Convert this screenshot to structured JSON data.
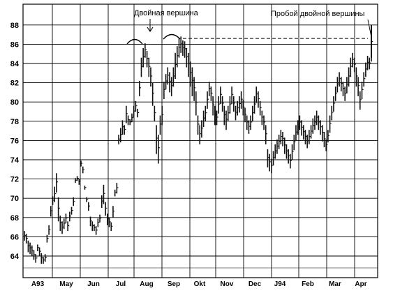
{
  "chart_data": {
    "type": "bar",
    "style": "OHLC price bars",
    "title": "",
    "xlabel": "",
    "ylabel": "",
    "ylim": [
      62.5,
      89.5
    ],
    "yticks": [
      64,
      66,
      68,
      70,
      72,
      74,
      76,
      78,
      80,
      82,
      84,
      86,
      88
    ],
    "grid": "on",
    "x_tick_labels": [
      "A93",
      "May",
      "Jun",
      "Jul",
      "Aug",
      "Sep",
      "Okt",
      "Nov",
      "Dec",
      "J94",
      "Feb",
      "Mar",
      "Apr"
    ],
    "annotations": [
      {
        "text": "Двойная вершина"
      },
      {
        "text": "Пробой двойной вершины"
      }
    ],
    "resistance_level": 86.6,
    "breakout_high": 88.0,
    "bars": [
      [
        66.6,
        65.6
      ],
      [
        66.3,
        65.3
      ],
      [
        65.6,
        64.4
      ],
      [
        65.4,
        64.2
      ],
      [
        65.1,
        64.0
      ],
      [
        64.6,
        63.6
      ],
      [
        64.2,
        63.3
      ],
      [
        65.2,
        64.5
      ],
      [
        64.9,
        64.0
      ],
      [
        64.3,
        63.2
      ],
      [
        63.9,
        63.2
      ],
      [
        64.2,
        63.4
      ],
      [
        66.2,
        65.4
      ],
      [
        67.2,
        66.2
      ],
      [
        69.2,
        68.1
      ],
      [
        70.2,
        69.3
      ],
      [
        71.2,
        69.6
      ],
      [
        72.6,
        70.6
      ],
      [
        70.1,
        67.6
      ],
      [
        68.2,
        66.6
      ],
      [
        67.6,
        66.3
      ],
      [
        67.9,
        66.8
      ],
      [
        68.4,
        67.4
      ],
      [
        67.6,
        66.6
      ],
      [
        68.6,
        67.6
      ],
      [
        69.1,
        68.3
      ],
      [
        70.1,
        69.2
      ],
      [
        72.1,
        71.6
      ],
      [
        72.3,
        71.8
      ],
      [
        72.0,
        71.4
      ],
      [
        73.9,
        73.3
      ],
      [
        73.3,
        72.6
      ],
      [
        71.3,
        70.9
      ],
      [
        70.1,
        69.6
      ],
      [
        69.6,
        68.7
      ],
      [
        68.1,
        67.1
      ],
      [
        67.6,
        66.6
      ],
      [
        67.3,
        66.6
      ],
      [
        67.1,
        66.2
      ],
      [
        67.9,
        67.0
      ],
      [
        68.3,
        67.5
      ],
      [
        70.3,
        69.0
      ],
      [
        71.4,
        69.4
      ],
      [
        69.6,
        68.2
      ],
      [
        68.4,
        67.2
      ],
      [
        68.0,
        67.0
      ],
      [
        67.5,
        66.6
      ],
      [
        69.2,
        68.0
      ],
      [
        70.9,
        70.2
      ],
      [
        71.6,
        70.5
      ],
      [
        76.6,
        75.6
      ],
      [
        77.3,
        75.8
      ],
      [
        78.1,
        76.6
      ],
      [
        77.6,
        76.6
      ],
      [
        79.6,
        77.8
      ],
      [
        78.6,
        77.6
      ],
      [
        78.2,
        77.6
      ],
      [
        78.8,
        77.9
      ],
      [
        79.6,
        78.4
      ],
      [
        80.1,
        79.0
      ],
      [
        79.3,
        78.4
      ],
      [
        82.2,
        80.6
      ],
      [
        84.6,
        82.6
      ],
      [
        85.6,
        83.6
      ],
      [
        86.1,
        84.6
      ],
      [
        85.3,
        83.6
      ],
      [
        84.6,
        82.6
      ],
      [
        83.6,
        81.6
      ],
      [
        82.0,
        79.6
      ],
      [
        79.6,
        78.0
      ],
      [
        77.6,
        74.6
      ],
      [
        76.6,
        73.6
      ],
      [
        78.6,
        76.6
      ],
      [
        79.6,
        77.6
      ],
      [
        82.1,
        80.3
      ],
      [
        82.9,
        81.3
      ],
      [
        83.6,
        81.8
      ],
      [
        83.1,
        81.0
      ],
      [
        82.6,
        80.6
      ],
      [
        83.6,
        81.6
      ],
      [
        85.1,
        82.4
      ],
      [
        85.8,
        83.6
      ],
      [
        86.6,
        84.6
      ],
      [
        86.8,
        85.1
      ],
      [
        86.4,
        84.8
      ],
      [
        86.3,
        84.6
      ],
      [
        85.6,
        83.6
      ],
      [
        85.1,
        82.6
      ],
      [
        84.2,
        81.6
      ],
      [
        83.6,
        80.6
      ],
      [
        82.6,
        80.1
      ],
      [
        81.1,
        78.6
      ],
      [
        78.6,
        76.6
      ],
      [
        77.6,
        75.6
      ],
      [
        78.1,
        76.3
      ],
      [
        79.1,
        77.4
      ],
      [
        79.6,
        78.0
      ],
      [
        81.1,
        79.3
      ],
      [
        82.1,
        80.6
      ],
      [
        81.6,
        80.1
      ],
      [
        80.6,
        78.6
      ],
      [
        79.6,
        77.6
      ],
      [
        79.1,
        77.6
      ],
      [
        80.6,
        78.8
      ],
      [
        81.6,
        79.8
      ],
      [
        80.6,
        79.0
      ],
      [
        79.6,
        77.6
      ],
      [
        79.1,
        77.1
      ],
      [
        79.6,
        78.0
      ],
      [
        80.6,
        78.8
      ],
      [
        81.6,
        79.8
      ],
      [
        80.6,
        79.0
      ],
      [
        79.6,
        78.1
      ],
      [
        80.1,
        78.6
      ],
      [
        80.6,
        78.9
      ],
      [
        81.1,
        79.3
      ],
      [
        80.2,
        78.6
      ],
      [
        79.4,
        77.9
      ],
      [
        78.6,
        77.1
      ],
      [
        78.1,
        76.7
      ],
      [
        78.6,
        77.1
      ],
      [
        79.6,
        78.0
      ],
      [
        80.6,
        78.8
      ],
      [
        81.6,
        79.9
      ],
      [
        81.1,
        79.4
      ],
      [
        80.1,
        78.6
      ],
      [
        79.1,
        77.6
      ],
      [
        78.6,
        77.1
      ],
      [
        77.6,
        75.6
      ],
      [
        75.1,
        73.2
      ],
      [
        74.6,
        72.8
      ],
      [
        74.1,
        72.6
      ],
      [
        74.9,
        73.4
      ],
      [
        75.6,
        74.1
      ],
      [
        76.1,
        74.6
      ],
      [
        76.6,
        75.1
      ],
      [
        77.1,
        75.6
      ],
      [
        76.9,
        75.4
      ],
      [
        76.3,
        74.6
      ],
      [
        75.6,
        74.1
      ],
      [
        75.1,
        73.6
      ],
      [
        74.6,
        73.1
      ],
      [
        75.6,
        74.0
      ],
      [
        76.6,
        75.0
      ],
      [
        77.6,
        76.0
      ],
      [
        78.1,
        76.6
      ],
      [
        78.6,
        77.1
      ],
      [
        78.1,
        76.5
      ],
      [
        77.6,
        76.1
      ],
      [
        77.1,
        75.6
      ],
      [
        76.6,
        75.2
      ],
      [
        77.1,
        75.6
      ],
      [
        77.6,
        76.2
      ],
      [
        78.3,
        76.7
      ],
      [
        78.6,
        77.1
      ],
      [
        79.1,
        77.6
      ],
      [
        78.6,
        77.1
      ],
      [
        78.1,
        76.6
      ],
      [
        77.6,
        75.9
      ],
      [
        76.9,
        75.3
      ],
      [
        76.1,
        74.9
      ],
      [
        77.1,
        75.8
      ],
      [
        78.6,
        76.8
      ],
      [
        79.6,
        78.1
      ],
      [
        80.6,
        79.0
      ],
      [
        81.6,
        80.1
      ],
      [
        82.6,
        81.0
      ],
      [
        83.1,
        81.6
      ],
      [
        82.6,
        81.1
      ],
      [
        82.1,
        80.6
      ],
      [
        81.6,
        80.1
      ],
      [
        82.6,
        80.9
      ],
      [
        83.6,
        81.6
      ],
      [
        84.6,
        82.6
      ],
      [
        85.1,
        83.6
      ],
      [
        84.6,
        83.1
      ],
      [
        83.6,
        81.6
      ],
      [
        82.6,
        80.6
      ],
      [
        81.1,
        79.2
      ],
      [
        82.1,
        80.3
      ],
      [
        83.1,
        81.6
      ],
      [
        84.1,
        82.6
      ],
      [
        84.8,
        83.3
      ],
      [
        84.6,
        83.4
      ],
      [
        88.0,
        84.2
      ]
    ]
  },
  "plot_text": {
    "annotation_double_top": "Двойная вершина",
    "annotation_breakout": "Пробой двойной вершины"
  }
}
